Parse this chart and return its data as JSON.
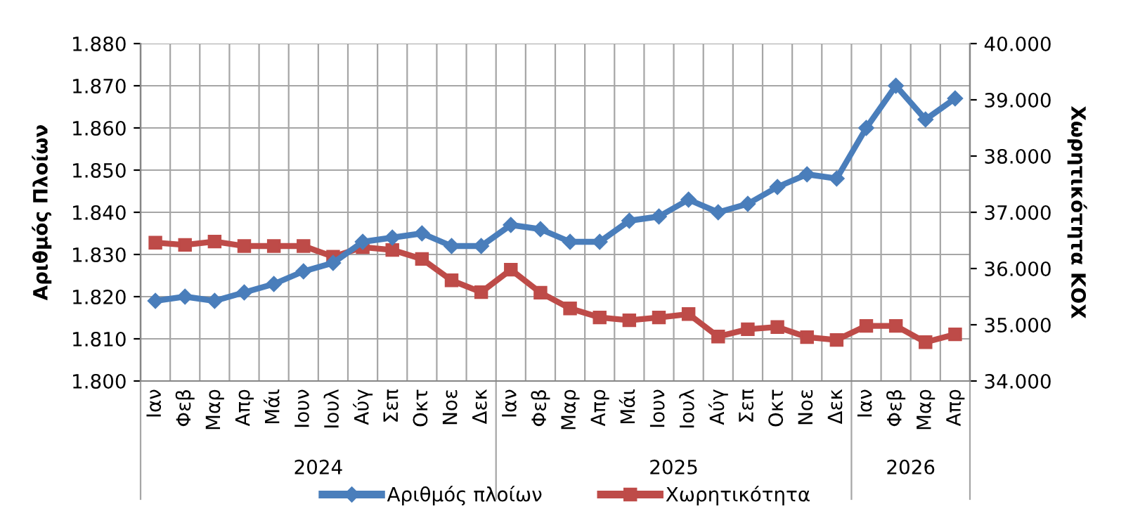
{
  "chart_data": {
    "type": "line",
    "ylabel": "Αριθμός Πλοίων",
    "y2label": "Χωρητικότητα ΚΟΧ",
    "categories": [
      "Ιαν",
      "Φεβ",
      "Μαρ",
      "Απρ",
      "Μάι",
      "Ιουν",
      "Ιουλ",
      "Αύγ",
      "Σεπ",
      "Οκτ",
      "Νοε",
      "Δεκ",
      "Ιαν",
      "Φεβ",
      "Μαρ",
      "Απρ",
      "Μάι",
      "Ιουν",
      "Ιουλ",
      "Αύγ",
      "Σεπ",
      "Οκτ",
      "Νοε",
      "Δεκ",
      "Ιαν",
      "Φεβ",
      "Μαρ",
      "Απρ"
    ],
    "annotations": [
      "2024",
      "2025",
      "2026"
    ],
    "series": [
      {
        "name": "Αριθμός πλοίων",
        "color": "#4a7ebb",
        "marker": "diamond",
        "values": [
          1819,
          1820,
          1819,
          1821,
          1823,
          1826,
          1828,
          1833,
          1834,
          1835,
          1832,
          1832,
          1837,
          1836,
          1833,
          1833,
          1838,
          1839,
          1843,
          1840,
          1842,
          1846,
          1849,
          1848,
          1860,
          1870,
          1862,
          1867
        ]
      },
      {
        "name": "Χωρητικότητα",
        "color": "#be4b48",
        "marker": "square",
        "axis": "y2",
        "values": [
          36460,
          36420,
          36480,
          36400,
          36400,
          36400,
          36210,
          36380,
          36330,
          36170,
          35790,
          35580,
          35980,
          35570,
          35290,
          35130,
          35080,
          35130,
          35190,
          34790,
          34920,
          34960,
          34780,
          34730,
          34980,
          34980,
          34690,
          34830
        ]
      }
    ],
    "ylim": [
      1800,
      1880
    ],
    "yticks": [
      {
        "value": 1800,
        "label": "1.800"
      },
      {
        "value": 1810,
        "label": "1.810"
      },
      {
        "value": 1820,
        "label": "1.820"
      },
      {
        "value": 1830,
        "label": "1.830"
      },
      {
        "value": 1840,
        "label": "1.840"
      },
      {
        "value": 1850,
        "label": "1.850"
      },
      {
        "value": 1860,
        "label": "1.860"
      },
      {
        "value": 1870,
        "label": "1.870"
      },
      {
        "value": 1880,
        "label": "1.880"
      }
    ],
    "y2lim": [
      34000,
      40000
    ],
    "y2ticks": [
      {
        "value": 34000,
        "label": "34.000"
      },
      {
        "value": 35000,
        "label": "35.000"
      },
      {
        "value": 36000,
        "label": "36.000"
      },
      {
        "value": 37000,
        "label": "37.000"
      },
      {
        "value": 38000,
        "label": "38.000"
      },
      {
        "value": 39000,
        "label": "39.000"
      },
      {
        "value": 40000,
        "label": "40.000"
      }
    ],
    "grid": true,
    "legend": "bottom",
    "line_style": "solid"
  }
}
